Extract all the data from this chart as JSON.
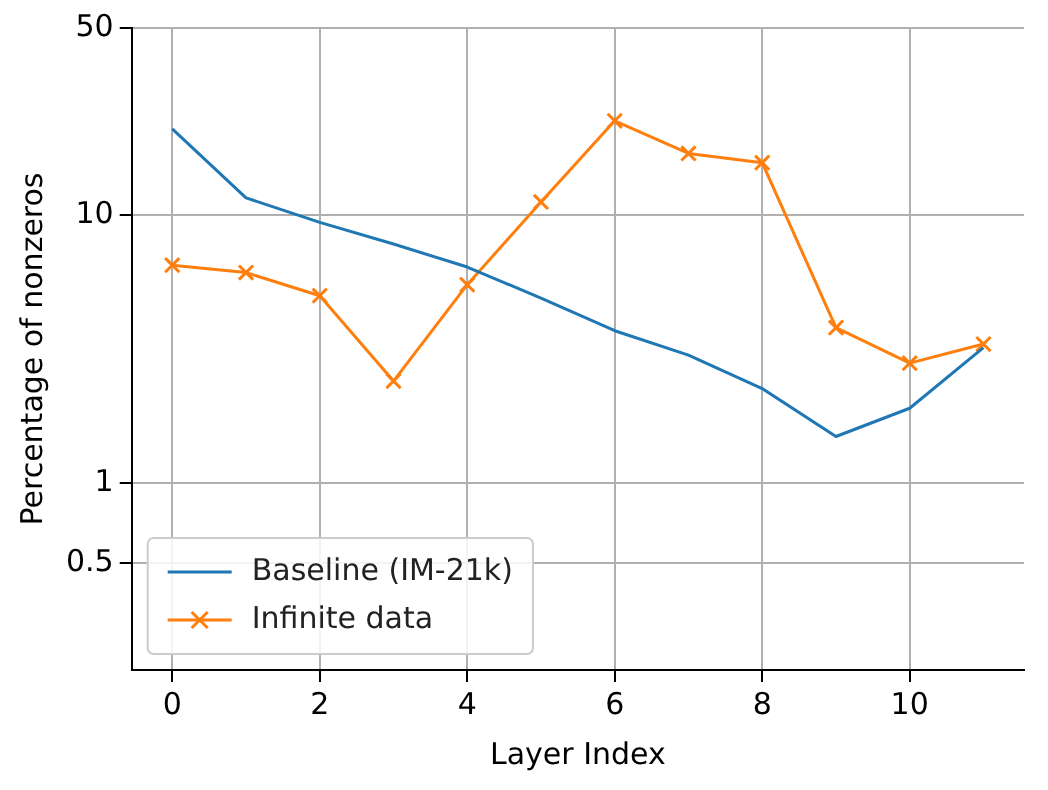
{
  "chart_data": {
    "type": "line",
    "xlabel": "Layer Index",
    "ylabel": "Percentage of nonzeros",
    "x": [
      0,
      1,
      2,
      3,
      4,
      5,
      6,
      7,
      8,
      9,
      10,
      11
    ],
    "series": [
      {
        "name": "Baseline (IM-21k)",
        "color": "#1f77b4",
        "marker": "none",
        "values": [
          21,
          11.6,
          9.4,
          7.8,
          6.4,
          4.9,
          3.7,
          3.0,
          2.25,
          1.49,
          1.9,
          3.2
        ]
      },
      {
        "name": "Infinite data",
        "color": "#ff7f0e",
        "marker": "cross",
        "values": [
          6.5,
          6.1,
          5.0,
          2.4,
          5.5,
          11.2,
          22.5,
          17,
          15.7,
          3.8,
          2.8,
          3.3
        ]
      }
    ],
    "xlim": [
      -0.55,
      11.55
    ],
    "xticks": [
      0,
      2,
      4,
      6,
      8,
      10
    ],
    "ylim": [
      0.2,
      50
    ],
    "yticks": [
      0.5,
      1,
      10,
      50
    ],
    "log": "y",
    "grid": true,
    "legend": "bottom left"
  }
}
